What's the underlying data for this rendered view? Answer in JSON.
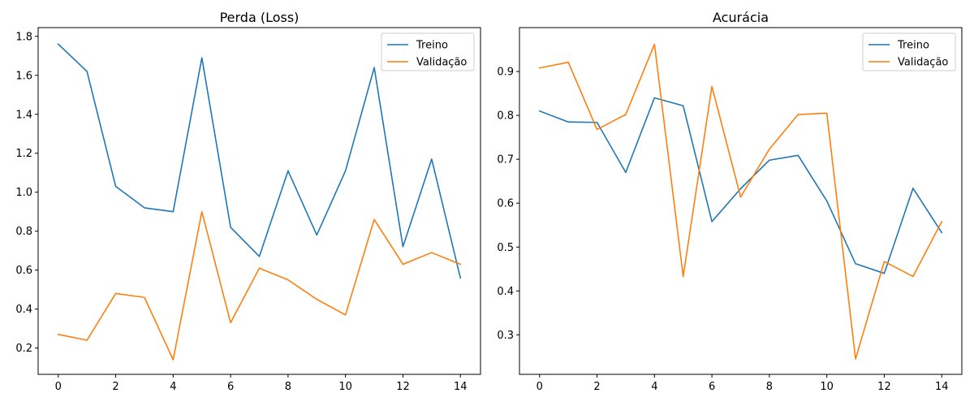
{
  "chart_data": [
    {
      "type": "line",
      "title": "Perda (Loss)",
      "xlabel": "",
      "ylabel": "",
      "x": [
        0,
        1,
        2,
        3,
        4,
        5,
        6,
        7,
        8,
        9,
        10,
        11,
        12,
        13,
        14
      ],
      "xlim": [
        -0.7,
        14.7
      ],
      "ylim": [
        0.065,
        1.845
      ],
      "xticks": [
        0,
        2,
        4,
        6,
        8,
        10,
        12,
        14
      ],
      "yticks": [
        0.2,
        0.4,
        0.6,
        0.8,
        1.0,
        1.2,
        1.4,
        1.6,
        1.8
      ],
      "ytick_decimals": 1,
      "grid": false,
      "legend": "top-right",
      "series": [
        {
          "name": "Treino",
          "color": "#1f77b4",
          "values": [
            1.76,
            1.62,
            1.03,
            0.92,
            0.9,
            1.69,
            0.82,
            0.67,
            1.11,
            0.78,
            1.11,
            1.64,
            0.72,
            1.17,
            0.56
          ]
        },
        {
          "name": "Validação",
          "color": "#ff7f0e",
          "values": [
            0.27,
            0.24,
            0.48,
            0.46,
            0.14,
            0.9,
            0.33,
            0.61,
            0.55,
            0.45,
            0.37,
            0.86,
            0.63,
            0.69,
            0.63
          ]
        }
      ]
    },
    {
      "type": "line",
      "title": "Acurácia",
      "xlabel": "",
      "ylabel": "",
      "x": [
        0,
        1,
        2,
        3,
        4,
        5,
        6,
        7,
        8,
        9,
        10,
        11,
        12,
        13,
        14
      ],
      "xlim": [
        -0.7,
        14.7
      ],
      "ylim": [
        0.21,
        1.0
      ],
      "xticks": [
        0,
        2,
        4,
        6,
        8,
        10,
        12,
        14
      ],
      "yticks": [
        0.3,
        0.4,
        0.5,
        0.6,
        0.7,
        0.8,
        0.9
      ],
      "ytick_decimals": 1,
      "grid": false,
      "legend": "top-right",
      "series": [
        {
          "name": "Treino",
          "color": "#1f77b4",
          "values": [
            0.81,
            0.785,
            0.784,
            0.67,
            0.84,
            0.822,
            0.558,
            0.633,
            0.698,
            0.709,
            0.605,
            0.462,
            0.44,
            0.634,
            0.533
          ]
        },
        {
          "name": "Validação",
          "color": "#ff7f0e",
          "values": [
            0.908,
            0.921,
            0.768,
            0.802,
            0.962,
            0.433,
            0.866,
            0.614,
            0.723,
            0.802,
            0.805,
            0.245,
            0.467,
            0.433,
            0.558
          ]
        }
      ]
    }
  ]
}
